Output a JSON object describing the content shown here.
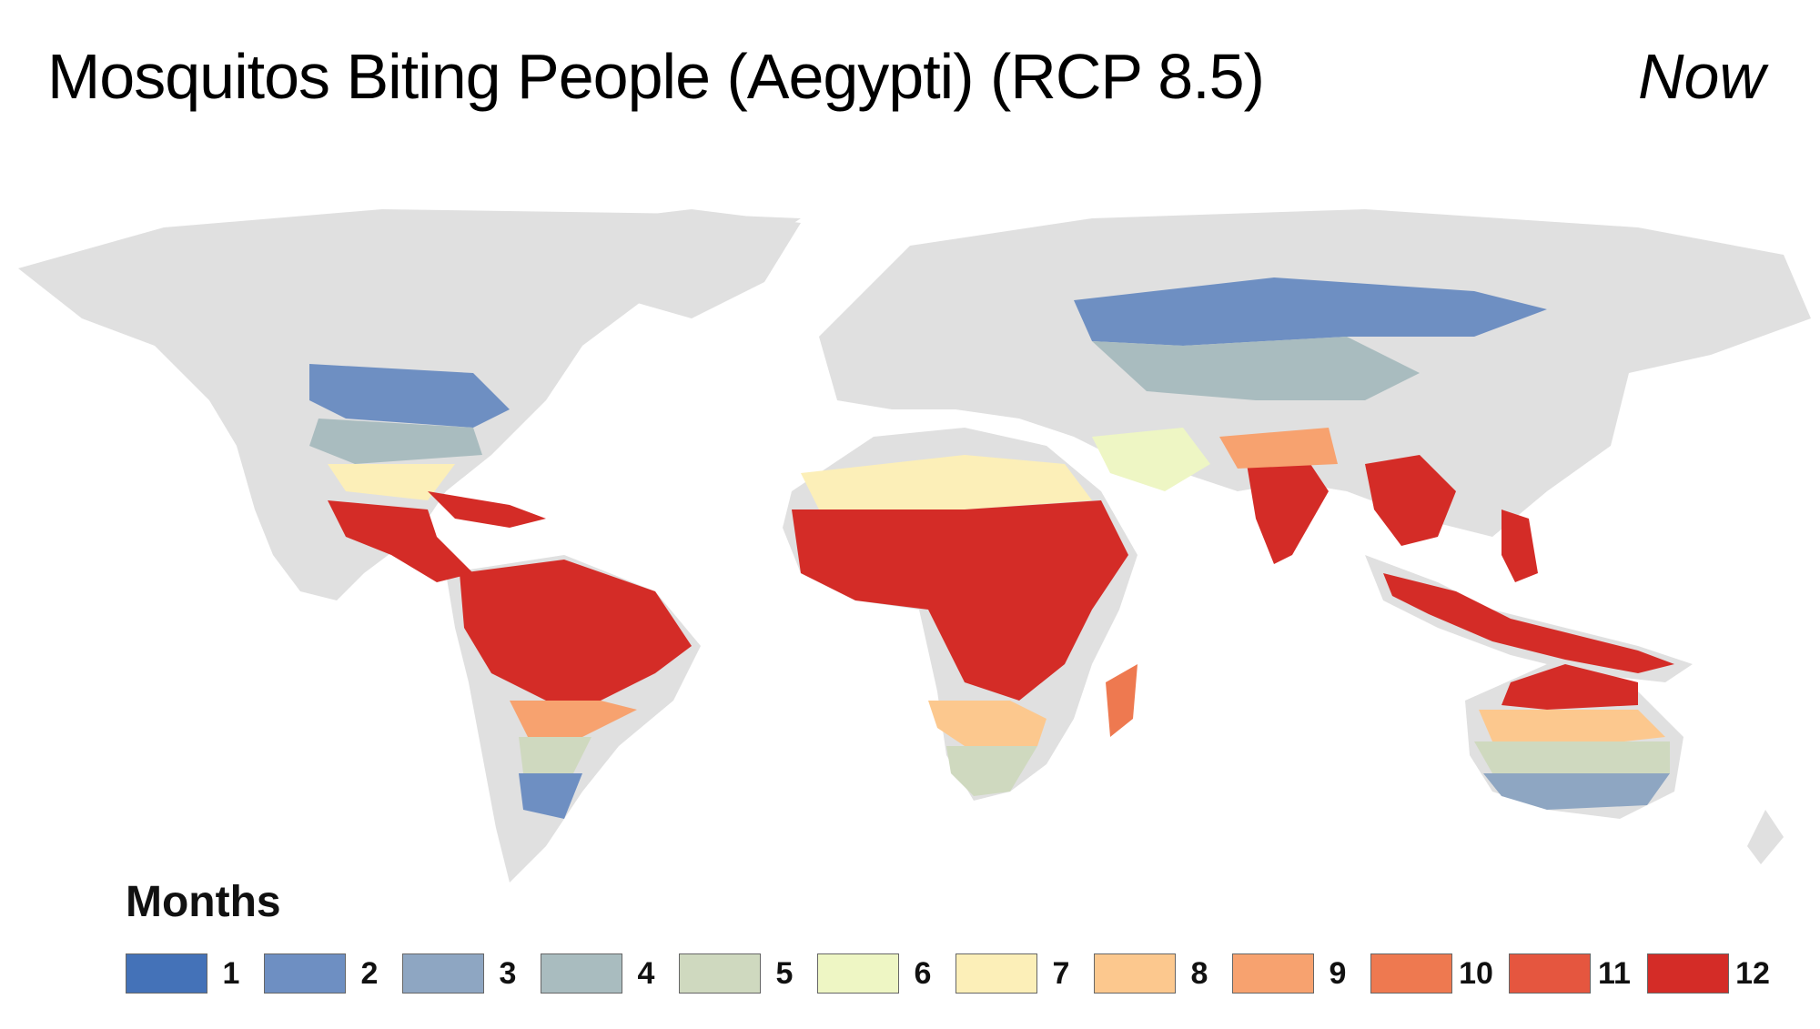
{
  "header": {
    "title": "Mosquitos Biting People (Aegypti) (RCP 8.5)",
    "period": "Now"
  },
  "legend": {
    "title": "Months",
    "items": [
      {
        "label": "1",
        "color": "#4472b8"
      },
      {
        "label": "2",
        "color": "#6e8fc2"
      },
      {
        "label": "3",
        "color": "#8ea6c2"
      },
      {
        "label": "4",
        "color": "#a9bcbf"
      },
      {
        "label": "5",
        "color": "#cfd9bf"
      },
      {
        "label": "6",
        "color": "#eef6c4"
      },
      {
        "label": "7",
        "color": "#fcefb8"
      },
      {
        "label": "8",
        "color": "#fcc88e"
      },
      {
        "label": "9",
        "color": "#f7a26f"
      },
      {
        "label": "10",
        "color": "#ee7950"
      },
      {
        "label": "11",
        "color": "#e5563f"
      },
      {
        "label": "12",
        "color": "#d42c27"
      }
    ]
  },
  "map": {
    "land_color": "#e0e0e0"
  }
}
